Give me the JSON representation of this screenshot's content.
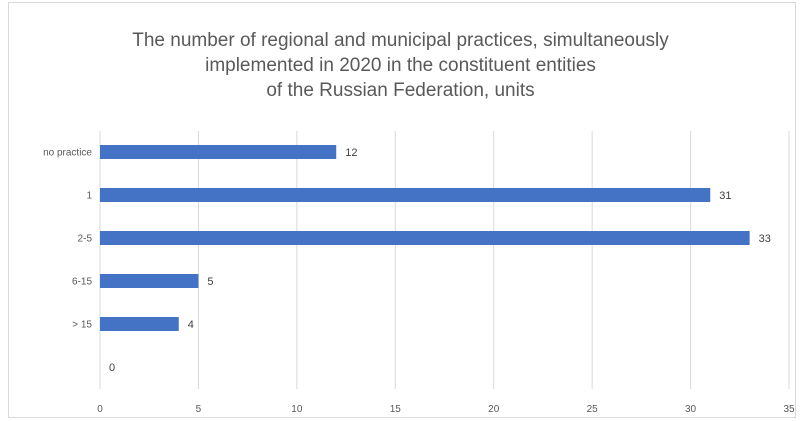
{
  "chart_data": {
    "type": "bar",
    "orientation": "horizontal",
    "title_lines": [
      "The number of regional and municipal practices, simultaneously",
      "implemented in 2020 in the constituent entities",
      "of the Russian Federation, units"
    ],
    "categories": [
      "no practice",
      "1",
      "2-5",
      "6-15",
      "> 15",
      ""
    ],
    "values": [
      12,
      31,
      33,
      5,
      4,
      0
    ],
    "xlim": [
      0,
      35
    ],
    "xticks": [
      0,
      5,
      10,
      15,
      20,
      25,
      30,
      35
    ],
    "grid": true,
    "legend": "none",
    "colors": {
      "bar": "#4472c4",
      "grid": "#d9d9d9"
    }
  }
}
